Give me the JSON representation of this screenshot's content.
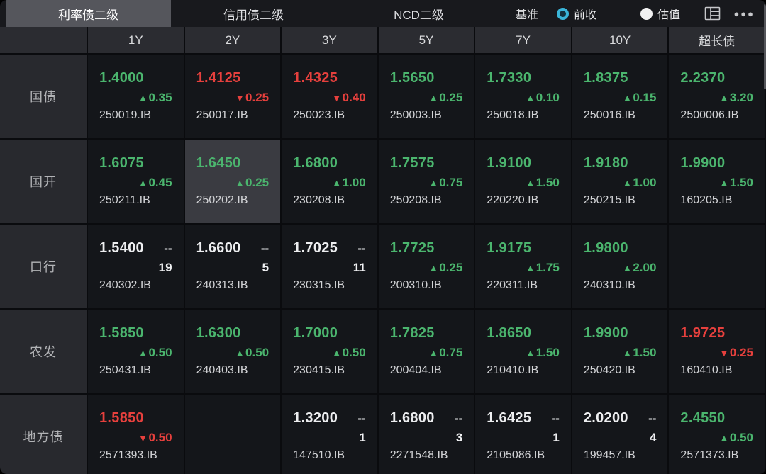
{
  "topbar": {
    "tabs": [
      {
        "label": "利率债二级",
        "active": true
      },
      {
        "label": "信用债二级",
        "active": false
      },
      {
        "label": "NCD二级",
        "active": false
      }
    ],
    "benchmark_label": "基准",
    "radios": [
      {
        "label": "前收",
        "selected": true
      },
      {
        "label": "估值",
        "selected": false
      }
    ],
    "more_glyph": "●●●"
  },
  "table": {
    "columns": [
      "1Y",
      "2Y",
      "3Y",
      "5Y",
      "7Y",
      "10Y",
      "超长债"
    ],
    "rows": [
      {
        "label": "国债",
        "cells": [
          {
            "value": "1.4000",
            "trend": "up",
            "change": "0.35",
            "code": "250019.IB"
          },
          {
            "value": "1.4125",
            "trend": "down",
            "change": "0.25",
            "code": "250017.IB"
          },
          {
            "value": "1.4325",
            "trend": "down",
            "change": "0.40",
            "code": "250023.IB"
          },
          {
            "value": "1.5650",
            "trend": "up",
            "change": "0.25",
            "code": "250003.IB"
          },
          {
            "value": "1.7330",
            "trend": "up",
            "change": "0.10",
            "code": "250018.IB"
          },
          {
            "value": "1.8375",
            "trend": "up",
            "change": "0.15",
            "code": "250016.IB"
          },
          {
            "value": "2.2370",
            "trend": "up",
            "change": "3.20",
            "code": "2500006.IB"
          }
        ]
      },
      {
        "label": "国开",
        "cells": [
          {
            "value": "1.6075",
            "trend": "up",
            "change": "0.45",
            "code": "250211.IB"
          },
          {
            "value": "1.6450",
            "trend": "up",
            "change": "0.25",
            "code": "250202.IB",
            "selected": true
          },
          {
            "value": "1.6800",
            "trend": "up",
            "change": "1.00",
            "code": "230208.IB"
          },
          {
            "value": "1.7575",
            "trend": "up",
            "change": "0.75",
            "code": "250208.IB"
          },
          {
            "value": "1.9100",
            "trend": "up",
            "change": "1.50",
            "code": "220220.IB"
          },
          {
            "value": "1.9180",
            "trend": "up",
            "change": "1.00",
            "code": "250215.IB"
          },
          {
            "value": "1.9900",
            "trend": "up",
            "change": "1.50",
            "code": "160205.IB"
          }
        ]
      },
      {
        "label": "口行",
        "cells": [
          {
            "value": "1.5400",
            "trend": "flat",
            "dash": "--",
            "count": "19",
            "code": "240302.IB"
          },
          {
            "value": "1.6600",
            "trend": "flat",
            "dash": "--",
            "count": "5",
            "code": "240313.IB"
          },
          {
            "value": "1.7025",
            "trend": "flat",
            "dash": "--",
            "count": "11",
            "code": "230315.IB"
          },
          {
            "value": "1.7725",
            "trend": "up",
            "change": "0.25",
            "code": "200310.IB"
          },
          {
            "value": "1.9175",
            "trend": "up",
            "change": "1.75",
            "code": "220311.IB"
          },
          {
            "value": "1.9800",
            "trend": "up",
            "change": "2.00",
            "code": "240310.IB"
          },
          {
            "empty": true
          }
        ]
      },
      {
        "label": "农发",
        "cells": [
          {
            "value": "1.5850",
            "trend": "up",
            "change": "0.50",
            "code": "250431.IB"
          },
          {
            "value": "1.6300",
            "trend": "up",
            "change": "0.50",
            "code": "240403.IB"
          },
          {
            "value": "1.7000",
            "trend": "up",
            "change": "0.50",
            "code": "230415.IB"
          },
          {
            "value": "1.7825",
            "trend": "up",
            "change": "0.75",
            "code": "200404.IB"
          },
          {
            "value": "1.8650",
            "trend": "up",
            "change": "1.50",
            "code": "210410.IB"
          },
          {
            "value": "1.9900",
            "trend": "up",
            "change": "1.50",
            "code": "250420.IB"
          },
          {
            "value": "1.9725",
            "trend": "down",
            "change": "0.25",
            "code": "160410.IB"
          }
        ]
      },
      {
        "label": "地方债",
        "cells": [
          {
            "value": "1.5850",
            "trend": "down",
            "change": "0.50",
            "code": "2571393.IB"
          },
          {
            "empty": true
          },
          {
            "value": "1.3200",
            "trend": "flat",
            "dash": "--",
            "count": "1",
            "code": "147510.IB"
          },
          {
            "value": "1.6800",
            "trend": "flat",
            "dash": "--",
            "count": "3",
            "code": "2271548.IB"
          },
          {
            "value": "1.6425",
            "trend": "flat",
            "dash": "--",
            "count": "1",
            "code": "2105086.IB"
          },
          {
            "value": "2.0200",
            "trend": "flat",
            "dash": "--",
            "count": "4",
            "code": "199457.IB"
          },
          {
            "value": "2.4550",
            "trend": "up",
            "change": "0.50",
            "code": "2571373.IB"
          }
        ]
      }
    ]
  },
  "colors": {
    "up": "#4bb56e",
    "down": "#e6403d",
    "flat": "#edeef0",
    "radio_active": "#3ab5d8",
    "selected_cell_bg": "#3a3b41"
  }
}
